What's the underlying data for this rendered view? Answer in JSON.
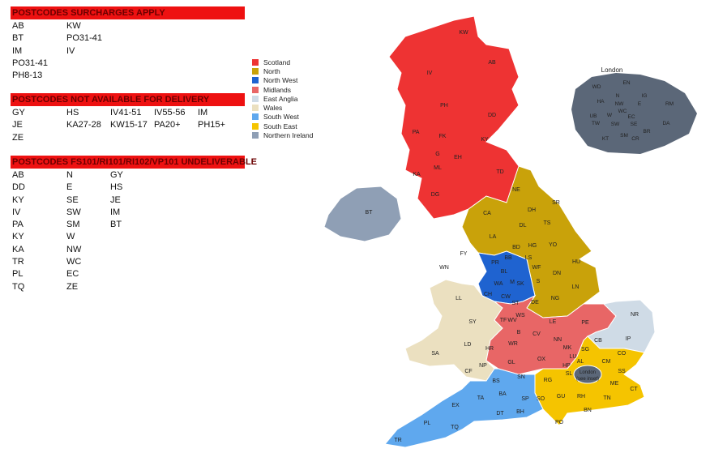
{
  "sections": [
    {
      "title": "POSTCODES SURCHARGES APPLY",
      "rows": [
        [
          "AB",
          "KW"
        ],
        [
          "BT",
          "PO31-41"
        ],
        [
          "IM",
          "IV"
        ],
        [
          "PO31-41"
        ],
        [
          "PH8-13"
        ]
      ]
    },
    {
      "title": "POSTCODES NOT AVAILABLE FOR DELIVERY",
      "rows": [
        [
          "GY",
          "HS",
          "IV41-51",
          "IV55-56",
          "IM"
        ],
        [
          "JE",
          "KA27-28",
          "KW15-17",
          "PA20+",
          "PH15+"
        ],
        [
          "ZE"
        ]
      ]
    },
    {
      "title": "POSTCODES FS101/RI101/RI102/VP101 UNDELIVERABLE",
      "rows": [
        [
          "AB",
          "N",
          "GY"
        ],
        [
          "DD",
          "E",
          "HS"
        ],
        [
          "KY",
          "SE",
          "JE"
        ],
        [
          "IV",
          "SW",
          "IM"
        ],
        [
          "PA",
          "SM",
          "BT"
        ],
        [
          "KY",
          "W"
        ],
        [
          "KA",
          "NW"
        ],
        [
          "TR",
          "WC"
        ],
        [
          "PL",
          "EC"
        ],
        [
          "TQ",
          "ZE"
        ]
      ]
    }
  ],
  "legend": [
    {
      "name": "Scotland",
      "color": "#ee3333"
    },
    {
      "name": "North",
      "color": "#c9a20a"
    },
    {
      "name": "North West",
      "color": "#1f63d0"
    },
    {
      "name": "Midlands",
      "color": "#e86666"
    },
    {
      "name": "East Anglia",
      "color": "#cfdbe6"
    },
    {
      "name": "Wales",
      "color": "#ebe0c0"
    },
    {
      "name": "South West",
      "color": "#5fa8ee"
    },
    {
      "name": "South East",
      "color": "#f5c400"
    },
    {
      "name": "Northern Ireland",
      "color": "#8f9fb5"
    }
  ],
  "london_color": "#5b6778",
  "regions": {
    "scotland": [
      "KW",
      "IV",
      "AB",
      "PH",
      "DD",
      "PA",
      "FK",
      "KY",
      "G",
      "EH",
      "ML",
      "KA",
      "TD",
      "DG"
    ],
    "north": [
      "NE",
      "SR",
      "CA",
      "DH",
      "DL",
      "TS",
      "LA",
      "YO",
      "BD",
      "HG",
      "LS",
      "HU",
      "WF",
      "DN",
      "S",
      "LN",
      "DE",
      "NG"
    ],
    "northwest": [
      "FY",
      "BB",
      "PR",
      "WN",
      "BL",
      "M",
      "WA",
      "SK",
      "CH",
      "CW"
    ],
    "wales": [
      "LL",
      "SY",
      "LD",
      "SA",
      "NP",
      "CF"
    ],
    "midlands": [
      "ST",
      "TF",
      "WV",
      "WS",
      "B",
      "LE",
      "PE",
      "CV",
      "NN",
      "WR",
      "HR",
      "MK",
      "GL",
      "OX"
    ],
    "eastanglia": [
      "NR",
      "IP",
      "CB"
    ],
    "southeast": [
      "SG",
      "CO",
      "LU",
      "AL",
      "HP",
      "CM",
      "SS",
      "RG",
      "SL",
      "ME",
      "GU",
      "RH",
      "TN",
      "CT",
      "SO",
      "BN",
      "PO"
    ],
    "southwest": [
      "SN",
      "BS",
      "BA",
      "SP",
      "TA",
      "EX",
      "DT",
      "BH",
      "PL",
      "TQ",
      "TR"
    ],
    "northernireland": [
      "BT"
    ]
  },
  "london_main_label": "London (see inset)",
  "london_inset": {
    "title": "London",
    "codes": [
      "EN",
      "WD",
      "HA",
      "N",
      "IG",
      "NW",
      "E",
      "RM",
      "UB",
      "W",
      "WC",
      "EC",
      "TW",
      "SW",
      "SE",
      "DA",
      "BR",
      "KT",
      "SM",
      "CR"
    ]
  }
}
